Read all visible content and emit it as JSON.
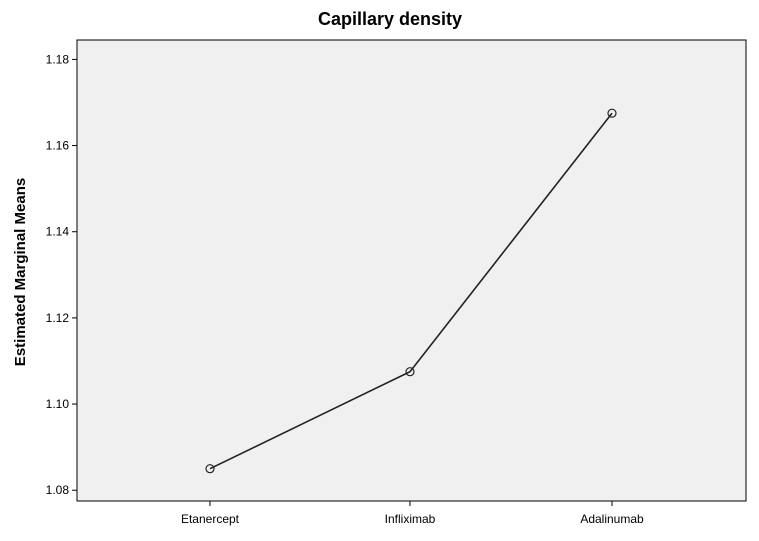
{
  "chart_data": {
    "type": "line",
    "title": "Capillary density",
    "xlabel": "",
    "ylabel": "Estimated Marginal Means",
    "categories": [
      "Etanercept",
      "Infliximab",
      "Adalinumab"
    ],
    "series": [
      {
        "values": [
          1.085,
          1.1075,
          1.1675
        ]
      }
    ],
    "yticks": [
      "1.08",
      "1.10",
      "1.12",
      "1.14",
      "1.16",
      "1.18"
    ],
    "ylim": [
      1.0775,
      1.1845
    ],
    "grid": false,
    "colors": {
      "plot_background": "#f0f0f0",
      "line": "#222222",
      "axis": "#000000"
    }
  }
}
